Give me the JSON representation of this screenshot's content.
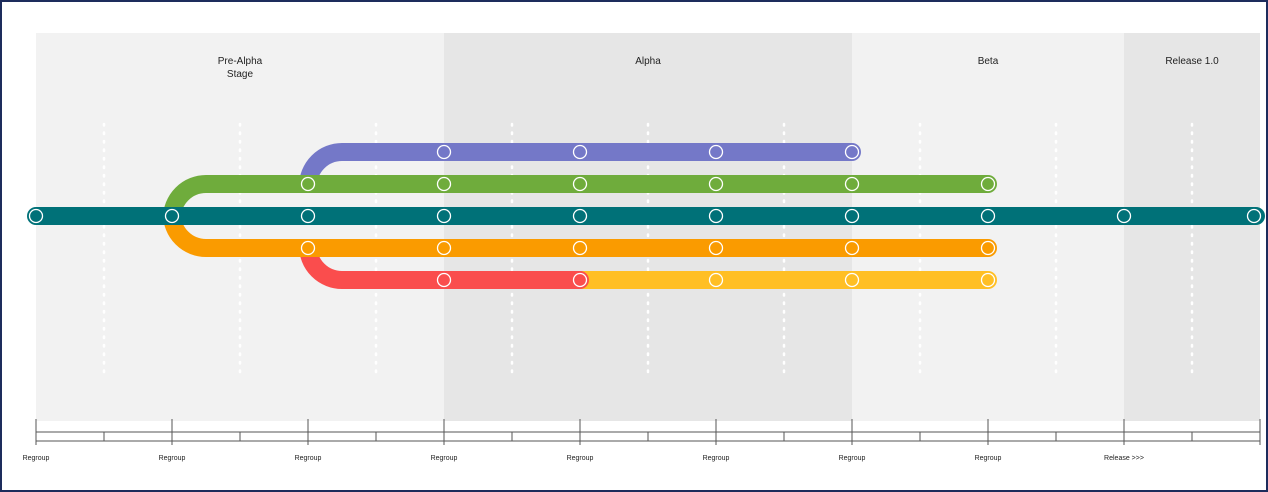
{
  "phases": [
    {
      "lines": [
        "Pre-Alpha",
        "Stage"
      ],
      "shade": "#f2f2f2"
    },
    {
      "lines": [
        "Alpha"
      ],
      "shade": "#e6e6e6"
    },
    {
      "lines": [
        "Beta"
      ],
      "shade": "#f2f2f2"
    },
    {
      "lines": [
        "Release 1.0"
      ],
      "shade": "#e6e6e6"
    }
  ],
  "milestones": [
    "Regroup",
    "Regroup",
    "Regroup",
    "Regroup",
    "Regroup",
    "Regroup",
    "Regroup",
    "Regroup",
    "Release >>>"
  ],
  "tracks": [
    {
      "id": "purple",
      "color": "#7478c8"
    },
    {
      "id": "green",
      "color": "#6fac3c"
    },
    {
      "id": "teal",
      "color": "#007178"
    },
    {
      "id": "orange",
      "color": "#fa9b00"
    },
    {
      "id": "red",
      "color": "#fa4d4d"
    },
    {
      "id": "yellow",
      "color": "#ffbf24"
    }
  ]
}
